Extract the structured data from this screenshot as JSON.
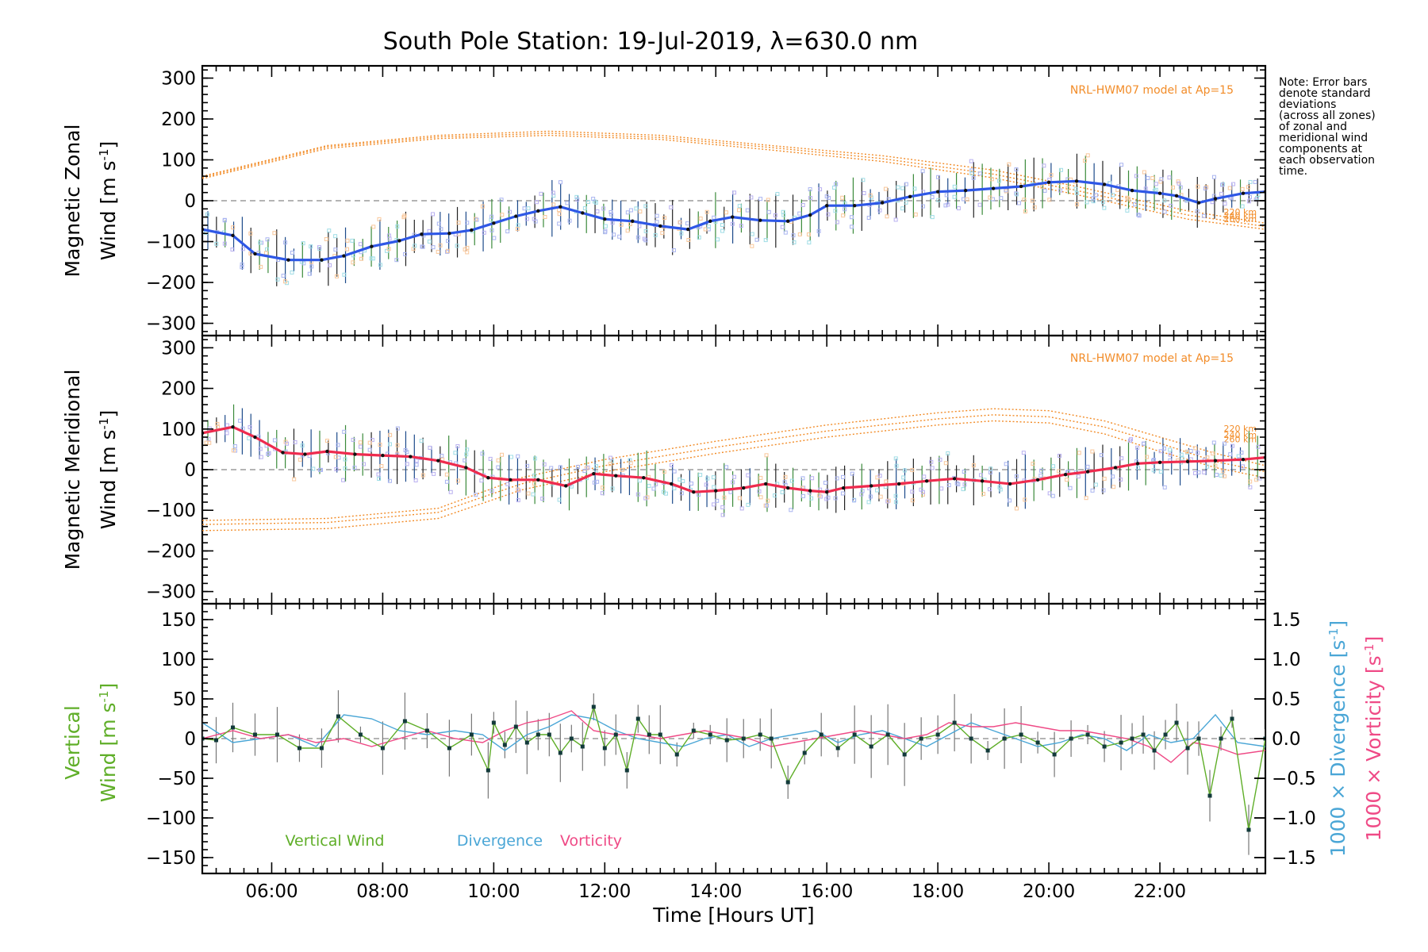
{
  "title": "South Pole Station: 19-Jul-2019, λ=630.0 nm",
  "note": [
    "Note: Error bars",
    "denote standard",
    "deviations",
    "(across all zones)",
    "of zonal and",
    "meridional wind",
    "components at",
    "each observation",
    "time."
  ],
  "colors": {
    "zonal": "#2e57e6",
    "meridional": "#ee2b4e",
    "vertical": "#5fae28",
    "divergence": "#4aa6d6",
    "vorticity": "#ef4a86",
    "model": "#f28c28"
  },
  "chart_data": [
    {
      "type": "line",
      "title": "South Pole Station: 19-Jul-2019, λ=630.0 nm",
      "ylabel_line1": "Magnetic Zonal",
      "ylabel_line2": "Wind [m s",
      "ylabel_sup": "-1",
      "ylabel_close": "]",
      "ylim": [
        -330,
        330
      ],
      "yticks": [
        300,
        200,
        100,
        0,
        -100,
        -200,
        -300
      ],
      "ytick_labels": [
        "300",
        "200",
        "100",
        "0",
        "−100",
        "−200",
        "−300"
      ],
      "model_label": "NRL-HWM07 model at Ap=15",
      "model_alt_labels": [
        "220 km",
        "240 km",
        "260 km"
      ],
      "series": [
        {
          "name": "Zonal wind",
          "color": "#2e57e6",
          "x": [
            4.75,
            5.3,
            5.7,
            6.3,
            6.9,
            7.3,
            7.8,
            8.3,
            8.7,
            9.2,
            9.6,
            10.0,
            10.4,
            10.8,
            11.2,
            11.6,
            12.0,
            12.5,
            13.0,
            13.5,
            13.9,
            14.3,
            14.8,
            15.3,
            15.7,
            16.0,
            16.5,
            17.0,
            17.5,
            18.0,
            18.5,
            19.0,
            19.5,
            20.0,
            20.5,
            21.0,
            21.5,
            22.0,
            22.3,
            22.7,
            23.0,
            23.5,
            23.9
          ],
          "y": [
            -70,
            -85,
            -130,
            -145,
            -145,
            -135,
            -112,
            -98,
            -82,
            -80,
            -72,
            -55,
            -38,
            -25,
            -15,
            -30,
            -45,
            -50,
            -62,
            -70,
            -50,
            -40,
            -48,
            -50,
            -35,
            -12,
            -12,
            -5,
            10,
            22,
            25,
            30,
            35,
            45,
            48,
            40,
            25,
            18,
            12,
            -5,
            5,
            18,
            22
          ]
        },
        {
          "name": "HWM07 220 km",
          "color": "#f28c28",
          "x": [
            4.75,
            7,
            9,
            11,
            13,
            15,
            17,
            19,
            20.5,
            21.5,
            22.5,
            23.9
          ],
          "y": [
            60,
            135,
            160,
            170,
            160,
            135,
            110,
            75,
            35,
            5,
            -25,
            -55
          ]
        },
        {
          "name": "HWM07 240 km",
          "color": "#f28c28",
          "x": [
            4.75,
            7,
            9,
            11,
            13,
            15,
            17,
            19,
            20.5,
            21.5,
            22.5,
            23.9
          ],
          "y": [
            57,
            132,
            156,
            165,
            155,
            130,
            103,
            65,
            25,
            -5,
            -35,
            -63
          ]
        },
        {
          "name": "HWM07 260 km",
          "color": "#f28c28",
          "x": [
            4.75,
            7,
            9,
            11,
            13,
            15,
            17,
            19,
            20.5,
            21.5,
            22.5,
            23.9
          ],
          "y": [
            54,
            128,
            152,
            160,
            150,
            124,
            96,
            56,
            15,
            -15,
            -45,
            -70
          ]
        }
      ]
    },
    {
      "type": "line",
      "ylabel_line1": "Magnetic Meridional",
      "ylabel_line2": "Wind [m s",
      "ylabel_sup": "-1",
      "ylabel_close": "]",
      "ylim": [
        -330,
        330
      ],
      "yticks": [
        300,
        200,
        100,
        0,
        -100,
        -200,
        -300
      ],
      "ytick_labels": [
        "300",
        "200",
        "100",
        "0",
        "−100",
        "−200",
        "−300"
      ],
      "model_label": "NRL-HWM07 model at Ap=15",
      "model_alt_labels": [
        "220 km",
        "240 km",
        "260 km"
      ],
      "series": [
        {
          "name": "Meridional wind",
          "color": "#ee2b4e",
          "x": [
            4.75,
            5.3,
            5.7,
            6.2,
            6.6,
            7.0,
            7.5,
            8.0,
            8.5,
            9.0,
            9.5,
            9.9,
            10.3,
            10.8,
            11.3,
            11.8,
            12.2,
            12.7,
            13.2,
            13.6,
            14.0,
            14.5,
            14.9,
            15.3,
            15.7,
            16.0,
            16.3,
            16.8,
            17.3,
            17.8,
            18.3,
            18.8,
            19.3,
            19.8,
            20.3,
            20.7,
            21.2,
            21.6,
            22.0,
            22.5,
            23.0,
            23.5,
            23.9
          ],
          "y": [
            90,
            105,
            80,
            42,
            38,
            45,
            38,
            35,
            32,
            22,
            5,
            -20,
            -25,
            -25,
            -40,
            -10,
            -15,
            -20,
            -35,
            -55,
            -52,
            -45,
            -35,
            -45,
            -52,
            -55,
            -45,
            -40,
            -35,
            -28,
            -22,
            -28,
            -35,
            -25,
            -12,
            -5,
            5,
            15,
            18,
            20,
            22,
            25,
            30
          ]
        },
        {
          "name": "HWM07 220 km",
          "color": "#f28c28",
          "x": [
            4.75,
            7,
            9,
            10.5,
            12,
            14,
            16,
            18,
            19,
            20,
            21,
            22,
            23,
            23.9
          ],
          "y": [
            -125,
            -120,
            -95,
            -20,
            25,
            70,
            110,
            140,
            150,
            145,
            120,
            80,
            40,
            10
          ]
        },
        {
          "name": "HWM07 240 km",
          "color": "#f28c28",
          "x": [
            4.75,
            7,
            9,
            10.5,
            12,
            14,
            16,
            18,
            19,
            20,
            21,
            22,
            23,
            23.9
          ],
          "y": [
            -135,
            -130,
            -105,
            -35,
            10,
            55,
            95,
            125,
            135,
            130,
            105,
            65,
            20,
            -5
          ]
        },
        {
          "name": "HWM07 260 km",
          "color": "#f28c28",
          "x": [
            4.75,
            7,
            9,
            10.5,
            12,
            14,
            16,
            18,
            19,
            20,
            21,
            22,
            23,
            23.9
          ],
          "y": [
            -150,
            -145,
            -120,
            -50,
            -5,
            40,
            80,
            110,
            120,
            115,
            88,
            45,
            5,
            -20
          ]
        }
      ]
    },
    {
      "type": "line",
      "ylabel_line1": "Vertical",
      "ylabel_line2": "Wind [m s",
      "ylabel_sup": "-1",
      "ylabel_close": "]",
      "ylim": [
        -170,
        170
      ],
      "yticks": [
        150,
        100,
        50,
        0,
        -50,
        -100,
        -150
      ],
      "ytick_labels": [
        "150",
        "100",
        "50",
        "0",
        "−50",
        "−100",
        "−150"
      ],
      "y2lim": [
        -1.7,
        1.7
      ],
      "y2ticks": [
        1.5,
        1.0,
        0.5,
        0.0,
        -0.5,
        -1.0,
        -1.5
      ],
      "y2tick_labels": [
        "1.5",
        "1.0",
        "0.5",
        "0.0",
        "−0.5",
        "−1.0",
        "−1.5"
      ],
      "y2label_div": "1000 × Divergence [s",
      "y2label_vort": "1000 × Vorticity [s",
      "y2label_sup": "-1",
      "y2label_close": "]",
      "xlim": [
        4.75,
        23.9
      ],
      "xticks": [
        6,
        8,
        10,
        12,
        14,
        16,
        18,
        20,
        22
      ],
      "xtick_labels": [
        "06:00",
        "08:00",
        "10:00",
        "12:00",
        "14:00",
        "16:00",
        "18:00",
        "20:00",
        "22:00"
      ],
      "xlabel": "Time [Hours UT]",
      "legend": [
        "Vertical Wind",
        "Divergence",
        "Vorticity"
      ],
      "series": [
        {
          "name": "Vertical Wind",
          "color": "#5fae28",
          "x": [
            4.75,
            5.0,
            5.3,
            5.7,
            6.1,
            6.5,
            6.9,
            7.2,
            7.6,
            8.0,
            8.4,
            8.8,
            9.2,
            9.6,
            9.9,
            10.0,
            10.2,
            10.4,
            10.6,
            10.8,
            11.0,
            11.2,
            11.4,
            11.6,
            11.8,
            12.0,
            12.2,
            12.4,
            12.6,
            12.8,
            13.0,
            13.3,
            13.6,
            13.9,
            14.2,
            14.5,
            14.8,
            15.0,
            15.3,
            15.6,
            15.9,
            16.2,
            16.5,
            16.8,
            17.1,
            17.4,
            17.7,
            18.0,
            18.3,
            18.6,
            18.9,
            19.2,
            19.5,
            19.8,
            20.1,
            20.4,
            20.7,
            21.0,
            21.3,
            21.5,
            21.7,
            21.9,
            22.1,
            22.3,
            22.5,
            22.7,
            22.9,
            23.1,
            23.3,
            23.6,
            23.9
          ],
          "y": [
            0,
            -2,
            14,
            5,
            5,
            -12,
            -12,
            28,
            5,
            -12,
            22,
            10,
            -12,
            5,
            -40,
            20,
            -8,
            15,
            -5,
            5,
            5,
            -18,
            0,
            -10,
            40,
            -12,
            5,
            -40,
            25,
            5,
            5,
            -20,
            10,
            5,
            -2,
            0,
            5,
            0,
            -55,
            -18,
            5,
            -12,
            5,
            -10,
            5,
            -20,
            0,
            5,
            20,
            0,
            -15,
            0,
            5,
            -5,
            -20,
            0,
            5,
            -10,
            -5,
            0,
            5,
            -15,
            5,
            20,
            -12,
            0,
            -72,
            0,
            25,
            -115,
            0
          ]
        },
        {
          "name": "Divergence",
          "color": "#4aa6d6",
          "x": [
            4.75,
            5.3,
            5.8,
            6.3,
            6.8,
            7.3,
            7.8,
            8.3,
            8.8,
            9.3,
            9.8,
            10.2,
            10.6,
            11.0,
            11.4,
            11.8,
            12.2,
            12.6,
            13.0,
            13.4,
            13.8,
            14.2,
            14.6,
            15.0,
            15.4,
            15.8,
            16.2,
            16.6,
            17.0,
            17.4,
            17.8,
            18.2,
            18.6,
            19.0,
            19.4,
            19.8,
            20.2,
            20.6,
            21.0,
            21.4,
            21.8,
            22.2,
            22.6,
            23.0,
            23.4,
            23.9
          ],
          "y": [
            0.2,
            -0.05,
            0.0,
            0.05,
            -0.1,
            0.3,
            0.25,
            0.1,
            0.05,
            0.1,
            0.05,
            -0.15,
            0.05,
            0.15,
            0.3,
            0.25,
            0.1,
            0.0,
            -0.05,
            -0.1,
            0.0,
            0.05,
            -0.1,
            0.0,
            0.05,
            0.1,
            -0.05,
            0.05,
            0.1,
            0.0,
            -0.1,
            0.05,
            0.2,
            0.1,
            0.0,
            -0.1,
            -0.05,
            0.05,
            0.0,
            -0.15,
            0.05,
            -0.05,
            0.0,
            0.3,
            -0.05,
            -0.1
          ]
        },
        {
          "name": "Vorticity",
          "color": "#ef4a86",
          "x": [
            4.75,
            5.3,
            5.8,
            6.3,
            6.8,
            7.3,
            7.8,
            8.3,
            8.8,
            9.3,
            9.8,
            10.2,
            10.6,
            11.0,
            11.4,
            11.8,
            12.2,
            12.6,
            13.0,
            13.4,
            13.8,
            14.2,
            14.6,
            15.0,
            15.4,
            15.8,
            16.2,
            16.6,
            17.0,
            17.4,
            17.8,
            18.2,
            18.6,
            19.0,
            19.4,
            19.8,
            20.2,
            20.6,
            21.0,
            21.4,
            21.8,
            22.2,
            22.6,
            23.0,
            23.4,
            23.9
          ],
          "y": [
            0.0,
            0.1,
            0.0,
            0.05,
            -0.05,
            0.0,
            -0.1,
            0.0,
            0.1,
            0.0,
            -0.05,
            0.1,
            0.2,
            0.25,
            0.35,
            0.1,
            0.05,
            0.05,
            0.0,
            0.05,
            0.1,
            0.05,
            0.0,
            -0.1,
            -0.05,
            0.0,
            0.05,
            0.1,
            0.05,
            0.0,
            0.05,
            0.2,
            0.15,
            0.15,
            0.2,
            0.15,
            0.1,
            0.1,
            0.05,
            0.0,
            -0.1,
            -0.3,
            -0.05,
            -0.1,
            -0.2,
            -0.15
          ]
        }
      ]
    }
  ]
}
